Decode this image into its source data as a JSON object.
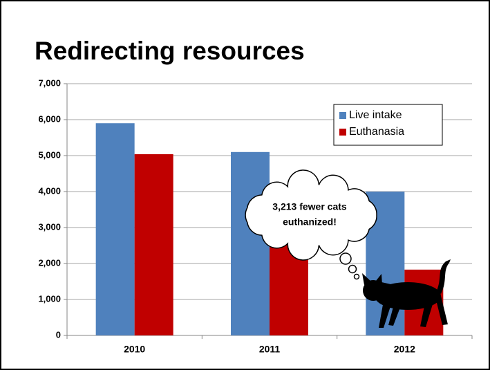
{
  "chart_data": {
    "type": "bar",
    "title": "Redirecting resources",
    "categories": [
      "2010",
      "2011",
      "2012"
    ],
    "series": [
      {
        "name": "Live intake",
        "color": "#4f81bd",
        "values": [
          5900,
          5100,
          4000
        ]
      },
      {
        "name": "Euthanasia",
        "color": "#c00000",
        "values": [
          5040,
          3100,
          1830
        ]
      }
    ],
    "ylim": [
      0,
      7000
    ],
    "yticks": [
      0,
      {
        "value": 1000,
        "label": "1,000"
      },
      {
        "value": 2000,
        "label": "2,000"
      },
      {
        "value": 3000,
        "label": "3,000"
      },
      {
        "value": 4000,
        "label": "4,000"
      },
      {
        "value": 5000,
        "label": "5,000"
      },
      {
        "value": 6000,
        "label": "6,000"
      },
      {
        "value": 7000,
        "label": "7,000"
      }
    ],
    "grid": true,
    "legend": "upper right",
    "annotation": [
      "3,213 fewer cats",
      "euthanized!"
    ]
  }
}
